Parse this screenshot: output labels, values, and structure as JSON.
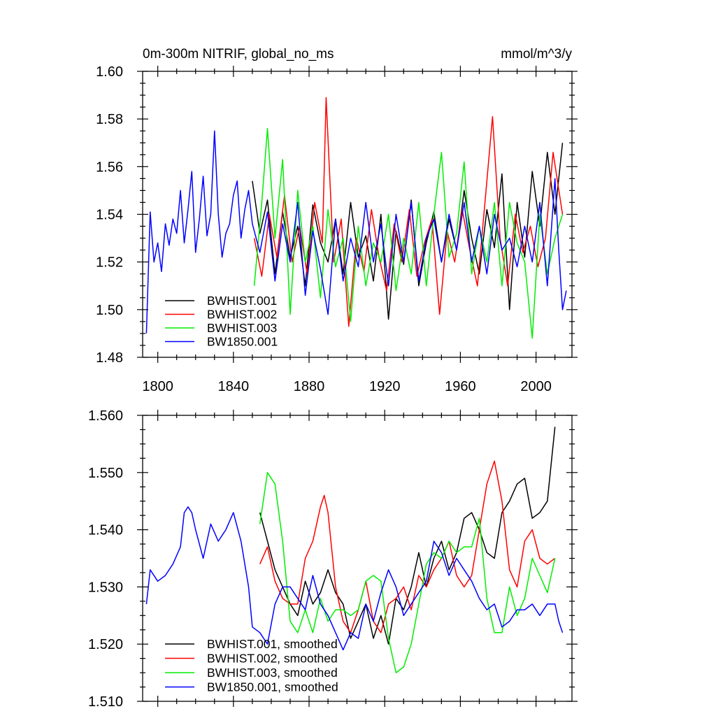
{
  "chart_data": [
    {
      "type": "line",
      "title_left": "0m-300m NITRIF, global_no_ms",
      "title_right": "mmol/m^3/y",
      "xlabel": "",
      "ylabel": "",
      "xlim": [
        1792,
        2019
      ],
      "ylim": [
        1.48,
        1.6
      ],
      "x_ticks": [
        1800,
        1840,
        1880,
        1920,
        1960,
        2000
      ],
      "x_tick_labels": [
        "1800",
        "1840",
        "1880",
        "1920",
        "1960",
        "2000"
      ],
      "y_ticks": [
        1.48,
        1.5,
        1.52,
        1.54,
        1.56,
        1.58,
        1.6
      ],
      "y_tick_labels": [
        "1.48",
        "1.50",
        "1.52",
        "1.54",
        "1.56",
        "1.58",
        "1.60"
      ],
      "legend_position": "bottom-left",
      "series": [
        {
          "name": "BWHIST.001",
          "color": "#000000",
          "x": [
            1850,
            1854,
            1858,
            1862,
            1866,
            1870,
            1874,
            1878,
            1882,
            1886,
            1890,
            1894,
            1898,
            1902,
            1906,
            1910,
            1914,
            1918,
            1922,
            1926,
            1930,
            1934,
            1938,
            1942,
            1946,
            1950,
            1954,
            1958,
            1962,
            1966,
            1970,
            1974,
            1978,
            1982,
            1986,
            1990,
            1994,
            1998,
            2002,
            2006,
            2010,
            2014
          ],
          "values": [
            1.554,
            1.532,
            1.546,
            1.515,
            1.541,
            1.522,
            1.535,
            1.51,
            1.544,
            1.528,
            1.52,
            1.538,
            1.515,
            1.545,
            1.522,
            1.531,
            1.512,
            1.54,
            1.496,
            1.533,
            1.519,
            1.546,
            1.51,
            1.528,
            1.541,
            1.52,
            1.538,
            1.525,
            1.55,
            1.53,
            1.515,
            1.542,
            1.526,
            1.557,
            1.5,
            1.545,
            1.522,
            1.558,
            1.535,
            1.566,
            1.54,
            1.57
          ]
        },
        {
          "name": "BWHIST.002",
          "color": "#ff0000",
          "x": [
            1851,
            1855,
            1859,
            1863,
            1867,
            1871,
            1875,
            1879,
            1883,
            1887,
            1889,
            1893,
            1897,
            1901,
            1905,
            1909,
            1913,
            1917,
            1921,
            1925,
            1929,
            1933,
            1937,
            1941,
            1945,
            1949,
            1953,
            1957,
            1961,
            1965,
            1969,
            1973,
            1977,
            1981,
            1985,
            1989,
            1993,
            1997,
            2001,
            2005,
            2009,
            2014
          ],
          "values": [
            1.53,
            1.514,
            1.54,
            1.522,
            1.548,
            1.52,
            1.535,
            1.515,
            1.545,
            1.528,
            1.589,
            1.52,
            1.538,
            1.493,
            1.53,
            1.516,
            1.542,
            1.522,
            1.508,
            1.536,
            1.52,
            1.542,
            1.514,
            1.528,
            1.538,
            1.498,
            1.533,
            1.52,
            1.542,
            1.525,
            1.51,
            1.545,
            1.581,
            1.53,
            1.51,
            1.54,
            1.524,
            1.535,
            1.518,
            1.53,
            1.566,
            1.54
          ]
        },
        {
          "name": "BWHIST.003",
          "color": "#00ee00",
          "x": [
            1851,
            1855,
            1858,
            1862,
            1866,
            1870,
            1874,
            1878,
            1882,
            1886,
            1890,
            1894,
            1898,
            1902,
            1906,
            1910,
            1914,
            1918,
            1922,
            1926,
            1930,
            1934,
            1938,
            1942,
            1946,
            1950,
            1954,
            1958,
            1962,
            1966,
            1970,
            1974,
            1978,
            1982,
            1986,
            1990,
            1994,
            1998,
            2002,
            2006,
            2010,
            2014
          ],
          "values": [
            1.51,
            1.545,
            1.576,
            1.53,
            1.563,
            1.498,
            1.55,
            1.52,
            1.535,
            1.505,
            1.542,
            1.518,
            1.53,
            1.495,
            1.535,
            1.51,
            1.528,
            1.52,
            1.54,
            1.508,
            1.53,
            1.515,
            1.545,
            1.51,
            1.54,
            1.566,
            1.522,
            1.532,
            1.562,
            1.515,
            1.535,
            1.52,
            1.545,
            1.51,
            1.545,
            1.528,
            1.52,
            1.488,
            1.54,
            1.515,
            1.53,
            1.54
          ]
        },
        {
          "name": "BW1850.001",
          "color": "#0000ff",
          "x": [
            1794,
            1796,
            1798,
            1800,
            1802,
            1804,
            1806,
            1808,
            1810,
            1812,
            1814,
            1816,
            1818,
            1820,
            1822,
            1824,
            1826,
            1828,
            1830,
            1832,
            1834,
            1836,
            1838,
            1840,
            1842,
            1844,
            1846,
            1848,
            1850,
            1854,
            1858,
            1862,
            1866,
            1870,
            1874,
            1878,
            1882,
            1886,
            1890,
            1894,
            1898,
            1902,
            1906,
            1910,
            1914,
            1918,
            1922,
            1926,
            1930,
            1934,
            1938,
            1942,
            1946,
            1950,
            1954,
            1958,
            1962,
            1966,
            1970,
            1974,
            1978,
            1982,
            1986,
            1990,
            1994,
            1998,
            2002,
            2006,
            2010,
            2012,
            2014,
            2016
          ],
          "values": [
            1.49,
            1.541,
            1.52,
            1.528,
            1.516,
            1.536,
            1.527,
            1.538,
            1.532,
            1.55,
            1.528,
            1.542,
            1.558,
            1.524,
            1.538,
            1.556,
            1.531,
            1.54,
            1.575,
            1.54,
            1.522,
            1.532,
            1.536,
            1.548,
            1.554,
            1.53,
            1.542,
            1.55,
            1.536,
            1.524,
            1.541,
            1.512,
            1.536,
            1.52,
            1.545,
            1.506,
            1.533,
            1.517,
            1.498,
            1.538,
            1.512,
            1.53,
            1.518,
            1.545,
            1.52,
            1.536,
            1.51,
            1.54,
            1.52,
            1.545,
            1.512,
            1.53,
            1.538,
            1.52,
            1.54,
            1.525,
            1.545,
            1.52,
            1.535,
            1.515,
            1.54,
            1.525,
            1.53,
            1.518,
            1.535,
            1.52,
            1.545,
            1.51,
            1.555,
            1.525,
            1.5,
            1.508
          ]
        }
      ]
    },
    {
      "type": "line",
      "title_left": "",
      "title_right": "",
      "xlabel": "",
      "ylabel": "",
      "xlim": [
        1792,
        2019
      ],
      "ylim": [
        1.51,
        1.56
      ],
      "x_ticks": [
        1800,
        1840,
        1880,
        1920,
        1960,
        2000
      ],
      "x_tick_labels": [],
      "y_ticks": [
        1.51,
        1.52,
        1.53,
        1.54,
        1.55,
        1.56
      ],
      "y_tick_labels": [
        "1.510",
        "1.520",
        "1.530",
        "1.540",
        "1.550",
        "1.560"
      ],
      "legend_position": "bottom-left",
      "series": [
        {
          "name": "BWHIST.001, smoothed",
          "color": "#000000",
          "x": [
            1854,
            1858,
            1862,
            1866,
            1870,
            1874,
            1878,
            1882,
            1886,
            1890,
            1894,
            1898,
            1902,
            1906,
            1910,
            1914,
            1918,
            1922,
            1926,
            1930,
            1934,
            1938,
            1942,
            1946,
            1950,
            1954,
            1958,
            1962,
            1966,
            1970,
            1974,
            1978,
            1982,
            1986,
            1990,
            1994,
            1998,
            2002,
            2006,
            2010
          ],
          "values": [
            1.543,
            1.538,
            1.533,
            1.53,
            1.527,
            1.525,
            1.531,
            1.527,
            1.529,
            1.533,
            1.529,
            1.527,
            1.521,
            1.524,
            1.527,
            1.521,
            1.525,
            1.52,
            1.528,
            1.526,
            1.53,
            1.536,
            1.53,
            1.535,
            1.538,
            1.533,
            1.536,
            1.542,
            1.543,
            1.54,
            1.536,
            1.535,
            1.543,
            1.545,
            1.548,
            1.549,
            1.542,
            1.543,
            1.545,
            1.558
          ]
        },
        {
          "name": "BWHIST.002, smoothed",
          "color": "#ff0000",
          "x": [
            1854,
            1858,
            1862,
            1866,
            1870,
            1874,
            1878,
            1882,
            1886,
            1888,
            1890,
            1894,
            1898,
            1902,
            1906,
            1910,
            1914,
            1918,
            1922,
            1926,
            1930,
            1934,
            1938,
            1942,
            1946,
            1950,
            1954,
            1958,
            1962,
            1966,
            1970,
            1974,
            1978,
            1982,
            1986,
            1990,
            1994,
            1998,
            2002,
            2006,
            2010
          ],
          "values": [
            1.534,
            1.537,
            1.531,
            1.528,
            1.527,
            1.527,
            1.535,
            1.538,
            1.544,
            1.546,
            1.543,
            1.53,
            1.524,
            1.522,
            1.526,
            1.531,
            1.524,
            1.522,
            1.527,
            1.528,
            1.53,
            1.526,
            1.532,
            1.53,
            1.533,
            1.535,
            1.538,
            1.532,
            1.53,
            1.532,
            1.54,
            1.548,
            1.552,
            1.545,
            1.533,
            1.53,
            1.538,
            1.54,
            1.535,
            1.534,
            1.535
          ]
        },
        {
          "name": "BWHIST.003, smoothed",
          "color": "#00ee00",
          "x": [
            1854,
            1858,
            1862,
            1866,
            1870,
            1874,
            1878,
            1882,
            1886,
            1890,
            1894,
            1898,
            1902,
            1906,
            1910,
            1914,
            1918,
            1922,
            1926,
            1930,
            1934,
            1938,
            1942,
            1946,
            1950,
            1954,
            1958,
            1962,
            1966,
            1970,
            1974,
            1978,
            1982,
            1986,
            1990,
            1994,
            1998,
            2002,
            2006,
            2010
          ],
          "values": [
            1.541,
            1.55,
            1.548,
            1.538,
            1.524,
            1.522,
            1.526,
            1.522,
            1.528,
            1.524,
            1.526,
            1.526,
            1.525,
            1.526,
            1.531,
            1.532,
            1.531,
            1.521,
            1.515,
            1.516,
            1.52,
            1.527,
            1.534,
            1.536,
            1.535,
            1.538,
            1.536,
            1.537,
            1.537,
            1.542,
            1.528,
            1.522,
            1.522,
            1.53,
            1.525,
            1.528,
            1.535,
            1.532,
            1.529,
            1.535
          ]
        },
        {
          "name": "BW1850.001, smoothed",
          "color": "#0000ff",
          "x": [
            1794,
            1796,
            1800,
            1804,
            1808,
            1812,
            1814,
            1816,
            1818,
            1820,
            1824,
            1828,
            1832,
            1836,
            1840,
            1844,
            1848,
            1850,
            1854,
            1858,
            1862,
            1866,
            1870,
            1874,
            1878,
            1882,
            1886,
            1890,
            1894,
            1898,
            1902,
            1906,
            1910,
            1914,
            1918,
            1922,
            1926,
            1930,
            1934,
            1938,
            1942,
            1946,
            1950,
            1954,
            1958,
            1962,
            1966,
            1970,
            1974,
            1978,
            1982,
            1986,
            1990,
            1994,
            1998,
            2002,
            2006,
            2010,
            2012,
            2014
          ],
          "values": [
            1.527,
            1.533,
            1.531,
            1.532,
            1.534,
            1.537,
            1.543,
            1.544,
            1.543,
            1.54,
            1.535,
            1.541,
            1.538,
            1.54,
            1.543,
            1.538,
            1.53,
            1.523,
            1.522,
            1.52,
            1.527,
            1.53,
            1.53,
            1.528,
            1.526,
            1.532,
            1.527,
            1.525,
            1.522,
            1.519,
            1.522,
            1.521,
            1.527,
            1.524,
            1.529,
            1.533,
            1.53,
            1.525,
            1.527,
            1.529,
            1.531,
            1.538,
            1.536,
            1.532,
            1.535,
            1.533,
            1.531,
            1.528,
            1.526,
            1.527,
            1.523,
            1.524,
            1.526,
            1.526,
            1.527,
            1.525,
            1.527,
            1.527,
            1.524,
            1.522
          ]
        }
      ]
    }
  ]
}
